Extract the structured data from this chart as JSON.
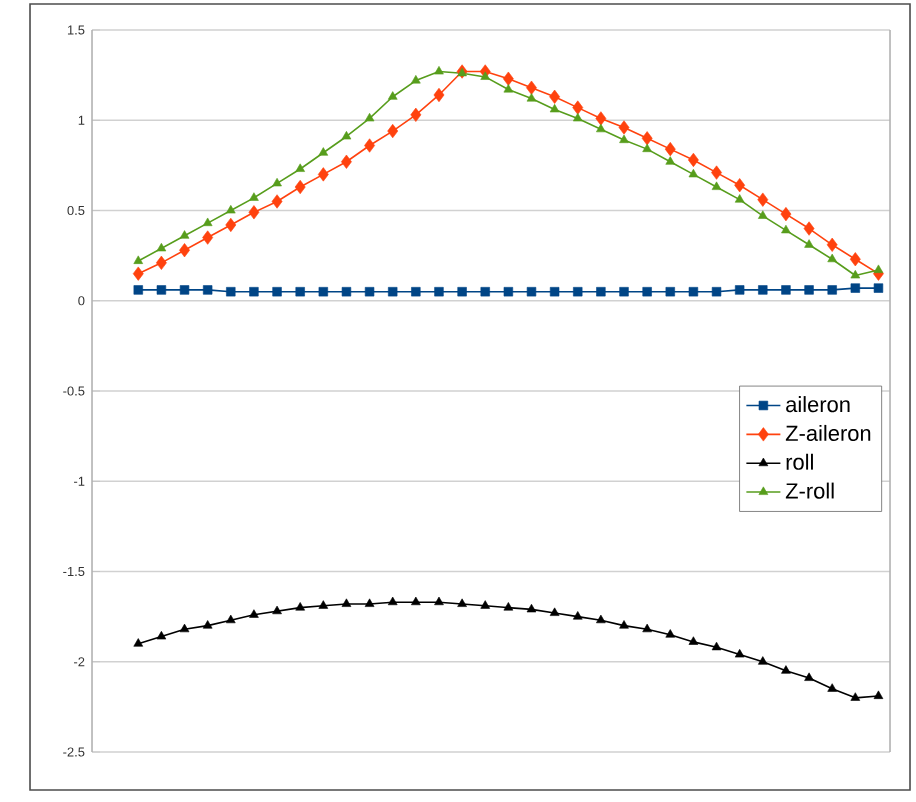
{
  "chart_data": {
    "type": "line",
    "categories": [
      null,
      null,
      null,
      null,
      null,
      null,
      null,
      null,
      null,
      null,
      null,
      null,
      null,
      null,
      null,
      null,
      null,
      null,
      null,
      null,
      null,
      null,
      null,
      null,
      null,
      null,
      null,
      null,
      null,
      null,
      null,
      null,
      null
    ],
    "series": [
      {
        "name": "aileron",
        "color": "#004586",
        "marker": "square",
        "values": [
          0.06,
          0.06,
          0.06,
          0.06,
          0.05,
          0.05,
          0.05,
          0.05,
          0.05,
          0.05,
          0.05,
          0.05,
          0.05,
          0.05,
          0.05,
          0.05,
          0.05,
          0.05,
          0.05,
          0.05,
          0.05,
          0.05,
          0.05,
          0.05,
          0.05,
          0.05,
          0.06,
          0.06,
          0.06,
          0.06,
          0.06,
          0.07,
          0.07
        ]
      },
      {
        "name": "Z-aileron",
        "color": "#ff420e",
        "marker": "diamond",
        "values": [
          0.15,
          0.21,
          0.28,
          0.35,
          0.42,
          0.49,
          0.55,
          0.63,
          0.7,
          0.77,
          0.86,
          0.94,
          1.03,
          1.14,
          1.27,
          1.27,
          1.23,
          1.18,
          1.13,
          1.07,
          1.01,
          0.96,
          0.9,
          0.84,
          0.78,
          0.71,
          0.64,
          0.56,
          0.48,
          0.4,
          0.31,
          0.23,
          0.15
        ]
      },
      {
        "name": "roll",
        "color": "#000000",
        "marker": "triangle",
        "values": [
          -1.9,
          -1.86,
          -1.82,
          -1.8,
          -1.77,
          -1.74,
          -1.72,
          -1.7,
          -1.69,
          -1.68,
          -1.68,
          -1.67,
          -1.67,
          -1.67,
          -1.68,
          -1.69,
          -1.7,
          -1.71,
          -1.73,
          -1.75,
          -1.77,
          -1.8,
          -1.82,
          -1.85,
          -1.89,
          -1.92,
          -1.96,
          -2.0,
          -2.05,
          -2.09,
          -2.15,
          -2.2,
          -2.19
        ]
      },
      {
        "name": "Z-roll",
        "color": "#579d1c",
        "marker": "triangle",
        "values": [
          0.22,
          0.29,
          0.36,
          0.43,
          0.5,
          0.57,
          0.65,
          0.73,
          0.82,
          0.91,
          1.01,
          1.13,
          1.22,
          1.27,
          1.26,
          1.24,
          1.17,
          1.12,
          1.06,
          1.01,
          0.95,
          0.89,
          0.84,
          0.77,
          0.7,
          0.63,
          0.56,
          0.47,
          0.39,
          0.31,
          0.23,
          0.14,
          0.17
        ]
      }
    ],
    "ylim": [
      -2.5,
      1.5
    ],
    "yticks": [
      -2.5,
      -2,
      -1.5,
      -1,
      -0.5,
      0,
      0.5,
      1,
      1.5
    ],
    "grid": "y",
    "legend": "right"
  }
}
